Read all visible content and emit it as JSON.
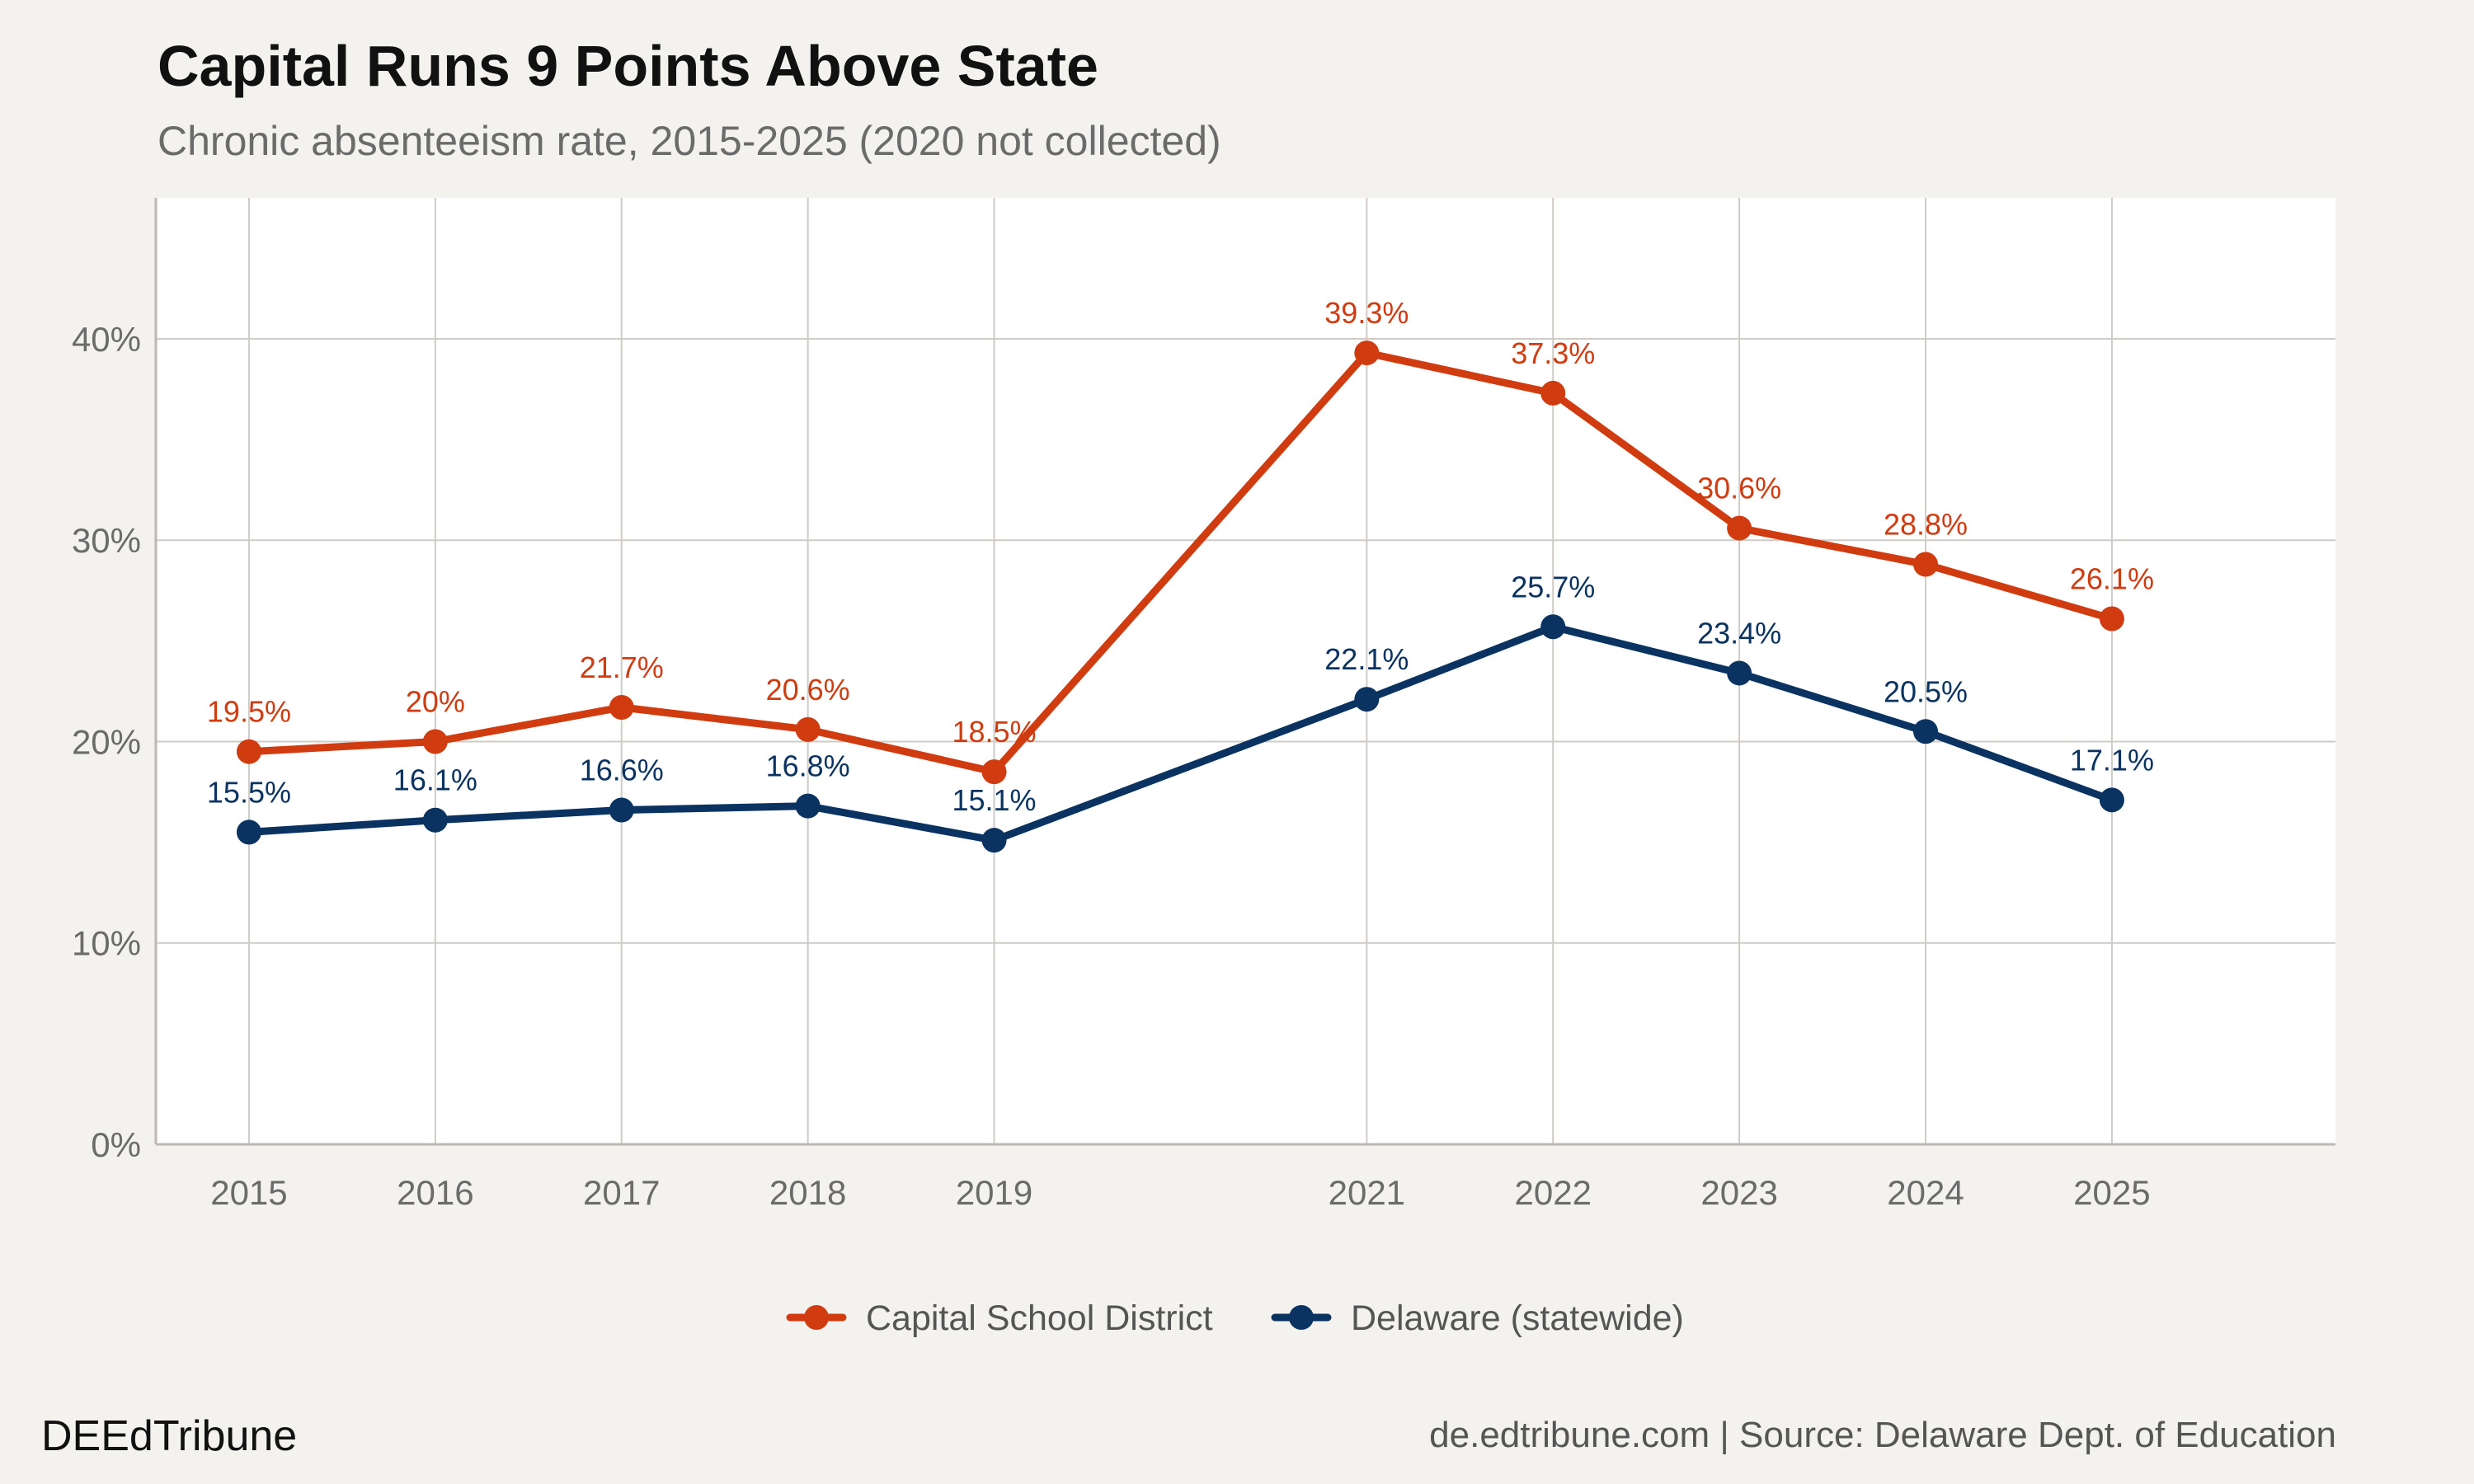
{
  "title": "Capital Runs 9 Points Above State",
  "subtitle": "Chronic absenteeism rate, 2015-2025 (2020 not collected)",
  "footer": {
    "brand": "DEEdTribune",
    "source": "de.edtribune.com | Source: Delaware Dept. of Education"
  },
  "chart_data": {
    "type": "line",
    "x": [
      2015,
      2016,
      2017,
      2018,
      2019,
      2021,
      2022,
      2023,
      2024,
      2025
    ],
    "xlim": [
      2014.5,
      2026.2
    ],
    "ylim": [
      0,
      0.47
    ],
    "yticks": [
      0,
      0.1,
      0.2,
      0.3,
      0.4
    ],
    "ytick_labels": [
      "0%",
      "10%",
      "20%",
      "30%",
      "40%"
    ],
    "xtick_labels": [
      "2015",
      "2016",
      "2017",
      "2018",
      "2019",
      "2021",
      "2022",
      "2023",
      "2024",
      "2025"
    ],
    "grid": true,
    "legend_position": "bottom",
    "series": [
      {
        "name": "Capital School District",
        "color": "#d13b10",
        "values": [
          0.195,
          0.2,
          0.217,
          0.206,
          0.185,
          0.393,
          0.373,
          0.306,
          0.288,
          0.261
        ],
        "labels": [
          "19.5%",
          "20%",
          "21.7%",
          "20.6%",
          "18.5%",
          "39.3%",
          "37.3%",
          "30.6%",
          "28.8%",
          "26.1%"
        ]
      },
      {
        "name": "Delaware (statewide)",
        "color": "#0b3361",
        "values": [
          0.155,
          0.161,
          0.166,
          0.168,
          0.151,
          0.221,
          0.257,
          0.234,
          0.205,
          0.171
        ],
        "labels": [
          "15.5%",
          "16.1%",
          "16.6%",
          "16.8%",
          "15.1%",
          "22.1%",
          "25.7%",
          "23.4%",
          "20.5%",
          "17.1%"
        ]
      }
    ]
  }
}
